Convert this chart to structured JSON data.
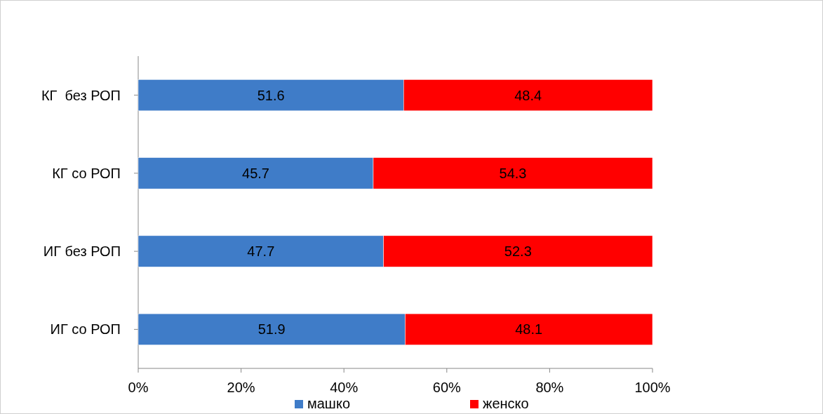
{
  "chart_data": {
    "type": "bar",
    "orientation": "horizontal",
    "stacked": true,
    "categories": [
      "КГ  без РОП",
      "КГ со РОП",
      "ИГ без РОП",
      "ИГ со РОП"
    ],
    "series": [
      {
        "name": "машко",
        "color": "#3f7cc8",
        "values": [
          51.6,
          45.7,
          47.7,
          51.9
        ]
      },
      {
        "name": "женско",
        "color": "#ff0000",
        "values": [
          48.4,
          54.3,
          52.3,
          48.1
        ]
      }
    ],
    "xlim": [
      0,
      100
    ],
    "xticks": [
      {
        "value": 0,
        "label": "0%"
      },
      {
        "value": 20,
        "label": "20%"
      },
      {
        "value": 40,
        "label": "40%"
      },
      {
        "value": 60,
        "label": "60%"
      },
      {
        "value": 80,
        "label": "80%"
      },
      {
        "value": 100,
        "label": "100%"
      }
    ],
    "data_labels": true,
    "legend": "bottom",
    "grid": false
  }
}
